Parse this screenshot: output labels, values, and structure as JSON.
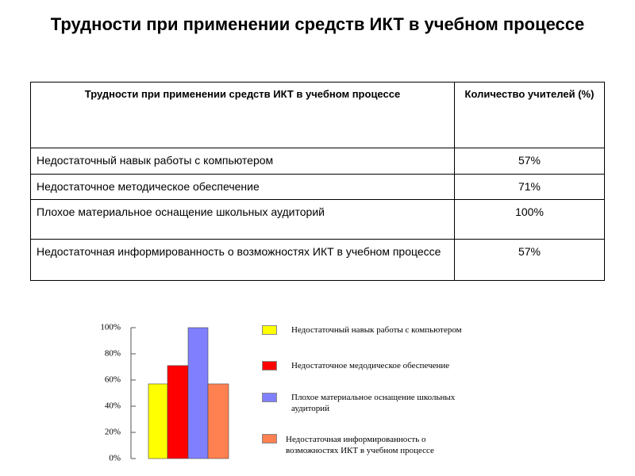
{
  "title": "Трудности при применении средств ИКТ в учебном процессе",
  "table": {
    "header": [
      "Трудности при применении средств ИКТ в учебном процессе",
      "Количество учителей (%)"
    ],
    "rows": [
      [
        "Недостаточный навык работы с компьютером",
        "57%"
      ],
      [
        "Недостаточное методическое обеспечение",
        "71%"
      ],
      [
        "Плохое материальное оснащение школьных аудиторий",
        "100%"
      ],
      [
        "Недостаточная информированность о возможностях ИКТ в учебном процессе",
        "57%"
      ]
    ]
  },
  "chart_data": {
    "type": "bar",
    "ylim": [
      0,
      100
    ],
    "yticks": [
      {
        "value": 0,
        "label": "0%"
      },
      {
        "value": 20,
        "label": "20%"
      },
      {
        "value": 40,
        "label": "40%"
      },
      {
        "value": 60,
        "label": "60%"
      },
      {
        "value": 80,
        "label": "80%"
      },
      {
        "value": 100,
        "label": "100%"
      }
    ],
    "series": [
      {
        "name": "Недостаточный навык работы с компьютером",
        "color": "#ffff00",
        "values": [
          57
        ]
      },
      {
        "name": "Недостаточное медодическое обеспечение",
        "color": "#ff0000",
        "values": [
          71
        ]
      },
      {
        "name": "Плохое материальное оснащение школьных аудиторий",
        "color": "#8080ff",
        "values": [
          100
        ]
      },
      {
        "name": "Недостаточная информированность о возможностях ИКТ в учебном процессе",
        "color": "#ff8050",
        "values": [
          57
        ]
      }
    ]
  }
}
